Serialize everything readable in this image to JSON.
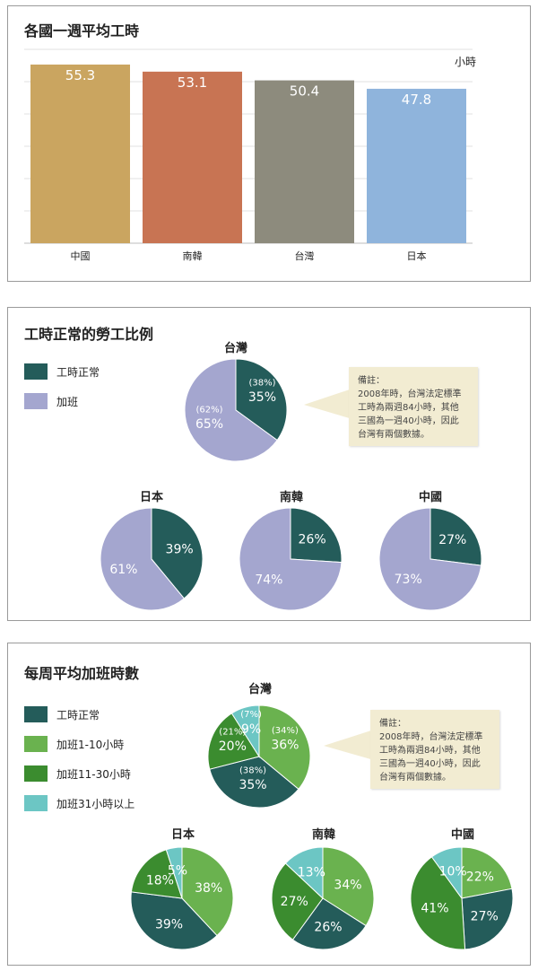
{
  "colors": {
    "china": "#caa560",
    "korea": "#c87453",
    "taiwan": "#8d8b7d",
    "japan": "#8fb4dc",
    "normal": "#245c5a",
    "overtime": "#a4a6cf",
    "ot_1_10": "#6ab24f",
    "ot_11_30": "#3b8c2f",
    "ot_31": "#6cc6c4",
    "note_bg": "#f2ecd2"
  },
  "panel1": {
    "title": "各國一週平均工時",
    "unit": "小時"
  },
  "panel2": {
    "title": "工時正常的勞工比例",
    "legend": [
      "工時正常",
      "加班"
    ],
    "note": [
      "備註：",
      "2008年時，台灣法定標準",
      "工時為兩週84小時，其他",
      "三國為一週40小時，因此",
      "台灣有兩個數據。"
    ]
  },
  "panel3": {
    "title": "每周平均加班時數",
    "legend": [
      "工時正常",
      "加班1-10小時",
      "加班11-30小時",
      "加班31小時以上"
    ],
    "note": [
      "備註：",
      "2008年時，台灣法定標準",
      "工時為兩週84小時，其他",
      "三國為一週40小時，因此",
      "台灣有兩個數據。"
    ]
  },
  "chart_data": [
    {
      "type": "bar",
      "title": "各國一週平均工時",
      "ylabel": "小時",
      "categories": [
        "中國",
        "南韓",
        "台灣",
        "日本"
      ],
      "values": [
        55.3,
        53.1,
        50.4,
        47.8
      ],
      "ylim": [
        0,
        60
      ],
      "grid": true
    },
    {
      "type": "pie",
      "title": "工時正常的勞工比例",
      "legend": [
        "工時正常",
        "加班"
      ],
      "pies": [
        {
          "name": "台灣",
          "values": [
            35,
            65
          ],
          "alt_labels": [
            "(38%)",
            "(62%)"
          ]
        },
        {
          "name": "日本",
          "values": [
            39,
            61
          ]
        },
        {
          "name": "南韓",
          "values": [
            26,
            74
          ]
        },
        {
          "name": "中國",
          "values": [
            27,
            73
          ]
        }
      ]
    },
    {
      "type": "pie",
      "title": "每周平均加班時數",
      "legend": [
        "工時正常",
        "加班1-10小時",
        "加班11-30小時",
        "加班31小時以上"
      ],
      "pies": [
        {
          "name": "台灣",
          "values": [
            35,
            36,
            20,
            9
          ],
          "alt_labels": [
            "(38%)",
            "(34%)",
            "(21%)",
            "(7%)"
          ]
        },
        {
          "name": "日本",
          "values": [
            39,
            38,
            18,
            5
          ]
        },
        {
          "name": "南韓",
          "values": [
            26,
            34,
            27,
            13
          ]
        },
        {
          "name": "中國",
          "values": [
            27,
            22,
            41,
            10
          ]
        }
      ]
    }
  ]
}
